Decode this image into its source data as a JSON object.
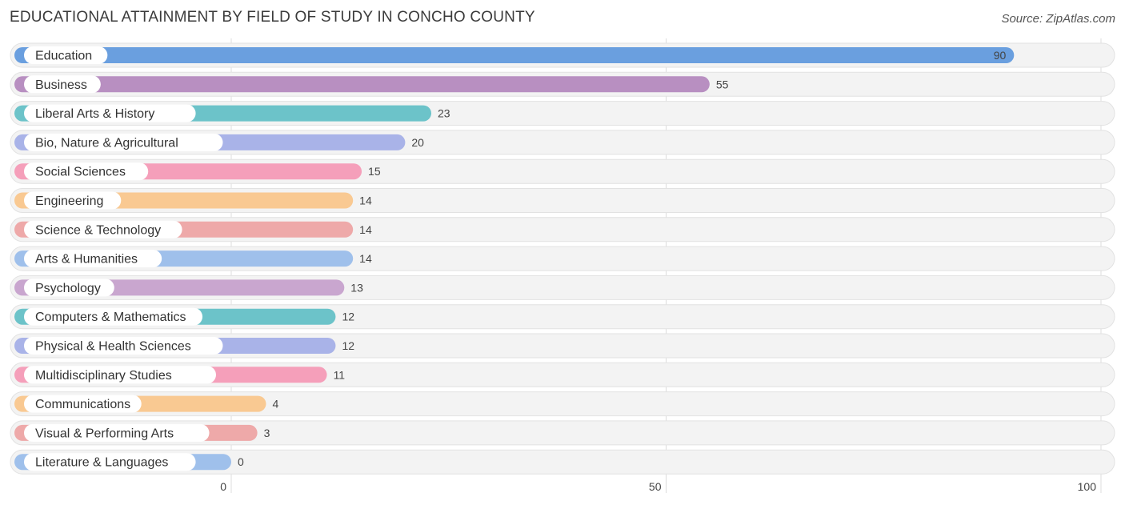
{
  "header": {
    "title": "EDUCATIONAL ATTAINMENT BY FIELD OF STUDY IN CONCHO COUNTY",
    "source": "Source: ZipAtlas.com"
  },
  "chart_data": {
    "type": "bar",
    "orientation": "horizontal",
    "title": "EDUCATIONAL ATTAINMENT BY FIELD OF STUDY IN CONCHO COUNTY",
    "categories": [
      "Education",
      "Business",
      "Liberal Arts & History",
      "Bio, Nature & Agricultural",
      "Social Sciences",
      "Engineering",
      "Science & Technology",
      "Arts & Humanities",
      "Psychology",
      "Computers & Mathematics",
      "Physical & Health Sciences",
      "Multidisciplinary Studies",
      "Communications",
      "Visual & Performing Arts",
      "Literature & Languages"
    ],
    "values": [
      90,
      55,
      23,
      20,
      15,
      14,
      14,
      14,
      13,
      12,
      12,
      11,
      4,
      3,
      0
    ],
    "colors": [
      "#6a9fdf",
      "#b88fc1",
      "#6cc3c9",
      "#a9b3e8",
      "#f59fba",
      "#f9c992",
      "#eea9a9",
      "#9fc0eb",
      "#c9a6cf",
      "#6cc3c9",
      "#a9b3e8",
      "#f59fba",
      "#f9c992",
      "#eea9a9",
      "#9fc0eb"
    ],
    "xticks": [
      0,
      50,
      100
    ],
    "xlim": [
      0,
      100
    ],
    "grid": true,
    "value_label_inside": [
      true,
      false,
      false,
      false,
      false,
      false,
      false,
      false,
      false,
      false,
      false,
      false,
      false,
      false,
      false
    ]
  }
}
